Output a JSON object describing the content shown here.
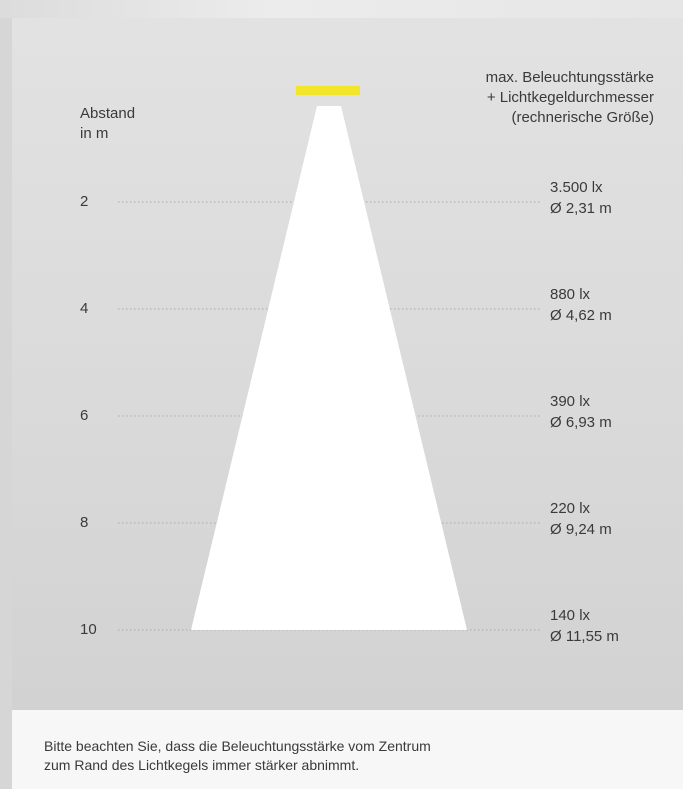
{
  "header": {
    "left_line1": "Abstand",
    "left_line2": "in m",
    "right_line1": "max. Beleuchtungsstärke",
    "right_line2": "+ Lichtkegeldurchmesser",
    "right_line3": "(rechnerische Größe)"
  },
  "colors": {
    "lamp": "#f2e62a",
    "cone": "#ffffff",
    "panel": "#dcdcdc",
    "dotted_line": "#a9a9a9"
  },
  "rows": [
    {
      "distance": "2",
      "lux": "3.500 lx",
      "diameter": "Ø 2,31 m"
    },
    {
      "distance": "4",
      "lux": "880 lx",
      "diameter": "Ø 4,62 m"
    },
    {
      "distance": "6",
      "lux": "390 lx",
      "diameter": "Ø 6,93 m"
    },
    {
      "distance": "8",
      "lux": "220 lx",
      "diameter": "Ø 9,24 m"
    },
    {
      "distance": "10",
      "lux": "140 lx",
      "diameter": "Ø 11,55 m"
    }
  ],
  "note": {
    "line1": "Bitte beachten Sie, dass die Beleuchtungsstärke vom Zentrum",
    "line2": "zum Rand des Lichtkegels immer stärker abnimmt."
  }
}
